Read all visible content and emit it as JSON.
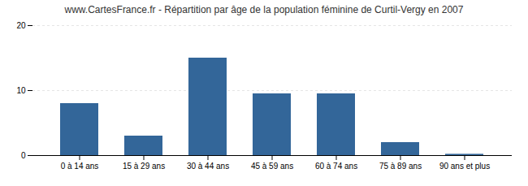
{
  "chart_data": {
    "type": "bar",
    "title": "www.CartesFrance.fr - Répartition par âge de la population féminine de Curtil-Vergy en 2007",
    "categories": [
      "0 à 14 ans",
      "15 à 29 ans",
      "30 à 44 ans",
      "45 à 59 ans",
      "60 à 74 ans",
      "75 à 89 ans",
      "90 ans et plus"
    ],
    "values": [
      8,
      3,
      15,
      9.5,
      9.5,
      2,
      0.2
    ],
    "color": "#336699",
    "ylim": [
      0,
      20
    ],
    "yticks": [
      0,
      10,
      20
    ],
    "grid": true
  }
}
